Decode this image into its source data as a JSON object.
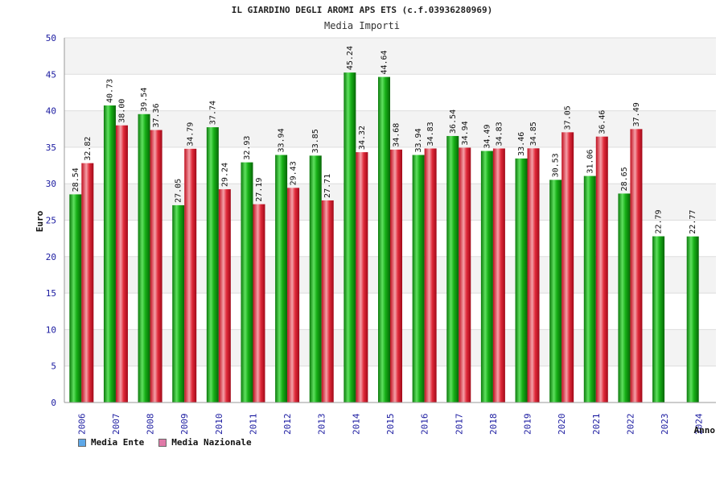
{
  "header": {
    "title": "IL GIARDINO DEGLI AROMI APS ETS (c.f.03936280969)",
    "subtitle": "Media Importi"
  },
  "legend": {
    "items": [
      {
        "label": "Media Ente",
        "color": "#5ea8e8"
      },
      {
        "label": "Media Nazionale",
        "color": "#e07aa8"
      }
    ]
  },
  "chart_data": {
    "type": "bar",
    "title": "IL GIARDINO DEGLI AROMI APS ETS (c.f.03936280969)",
    "subtitle": "Media Importi",
    "xlabel": "Anno",
    "ylabel": "Euro",
    "ylim": [
      0,
      50
    ],
    "yticks": [
      0,
      5,
      10,
      15,
      20,
      25,
      30,
      35,
      40,
      45,
      50
    ],
    "grid": true,
    "legend_position": "bottom-left",
    "categories": [
      "2006",
      "2007",
      "2008",
      "2009",
      "2010",
      "2011",
      "2012",
      "2013",
      "2014",
      "2015",
      "2016",
      "2017",
      "2018",
      "2019",
      "2020",
      "2021",
      "2022",
      "2023",
      "2024"
    ],
    "series": [
      {
        "name": "Media Ente",
        "color": "#1fb81f",
        "values": [
          28.54,
          40.73,
          39.54,
          27.05,
          37.74,
          32.93,
          33.94,
          33.85,
          45.24,
          44.64,
          33.94,
          36.54,
          34.49,
          33.46,
          30.53,
          31.06,
          28.65,
          22.79,
          22.77
        ]
      },
      {
        "name": "Media Nazionale",
        "color": "#e8283a",
        "values": [
          32.82,
          38.0,
          37.36,
          34.79,
          29.24,
          27.19,
          29.43,
          27.71,
          34.32,
          34.68,
          34.83,
          34.94,
          34.83,
          34.85,
          37.05,
          36.46,
          37.49,
          null,
          null
        ]
      }
    ],
    "data_labels": {
      "Media Ente": [
        "28.54",
        "40.73",
        "39.54",
        "27.05",
        "37.74",
        "32.93",
        "33.94",
        "33.85",
        "45.24",
        "44.64",
        "33.94",
        "36.54",
        "34.49",
        "33.46",
        "30.53",
        "31.06",
        "28.65",
        "22.79",
        "22.77"
      ],
      "Media Nazionale": [
        "32.82",
        "38.00",
        "37.36",
        "34.79",
        "29.24",
        "27.19",
        "29.43",
        "27.71",
        "34.32",
        "34.68",
        "34.83",
        "34.94",
        "34.83",
        "34.85",
        "37.05",
        "36.46",
        "37.49",
        null,
        null
      ]
    }
  }
}
